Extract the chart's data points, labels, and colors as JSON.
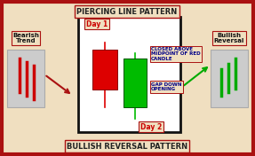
{
  "title_top": "PIERCING LINE PATTERN",
  "title_bottom": "BULLISH REVERSAL PATTERN",
  "bg_color": "#f0dfc0",
  "outer_border_color": "#aa1111",
  "main_box_bg": "#ffffff",
  "main_box_border": "#111111",
  "label_day1": "Day 1",
  "label_day2": "Day 2",
  "label_bearish": "Bearish\nTrend",
  "label_bullish": "Bullish\nReversal",
  "label_closed_above": "CLOSED ABOVE\nMIDPOINT OF RED\nCANDLE",
  "label_gap_down": "GAP DOWN\nOPENING",
  "red_candle_color": "#dd0000",
  "green_candle_color": "#00bb00",
  "side_box_bg": "#cccccc",
  "side_box_border": "#aaaaaa",
  "figw": 2.87,
  "figh": 1.76,
  "dpi": 100
}
